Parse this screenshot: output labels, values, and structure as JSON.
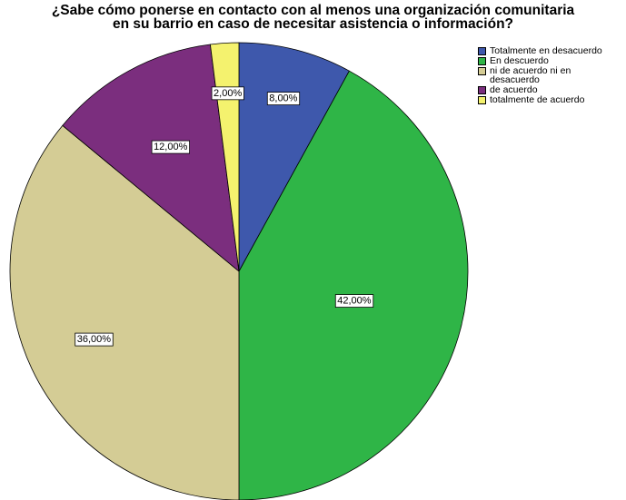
{
  "chart_data": {
    "type": "pie",
    "title": "¿Sabe cómo ponerse en contacto con al menos una organización comunitaria en su barrio en caso de necesitar asistencia o información?",
    "title_lines": [
      "¿Sabe cómo ponerse en contacto con al menos una organización comunitaria",
      "en su barrio en caso de necesitar asistencia o información?"
    ],
    "legend_position": "top-right",
    "slices": [
      {
        "label": "Totalmente en desacuerdo",
        "value": 8.0,
        "display": "8,00%",
        "color": "#3e58ac"
      },
      {
        "label": "En descuerdo",
        "value": 42.0,
        "display": "42,00%",
        "color": "#2fb547"
      },
      {
        "label": "ni de acuerdo ni en desacuerdo",
        "value": 36.0,
        "display": "36,00%",
        "color": "#d4cc95"
      },
      {
        "label": "de acuerdo",
        "value": 12.0,
        "display": "12,00%",
        "color": "#7b2e7e"
      },
      {
        "label": "totalmente de acuerdo",
        "value": 2.0,
        "display": "2,00%",
        "color": "#f4f26e"
      }
    ]
  }
}
